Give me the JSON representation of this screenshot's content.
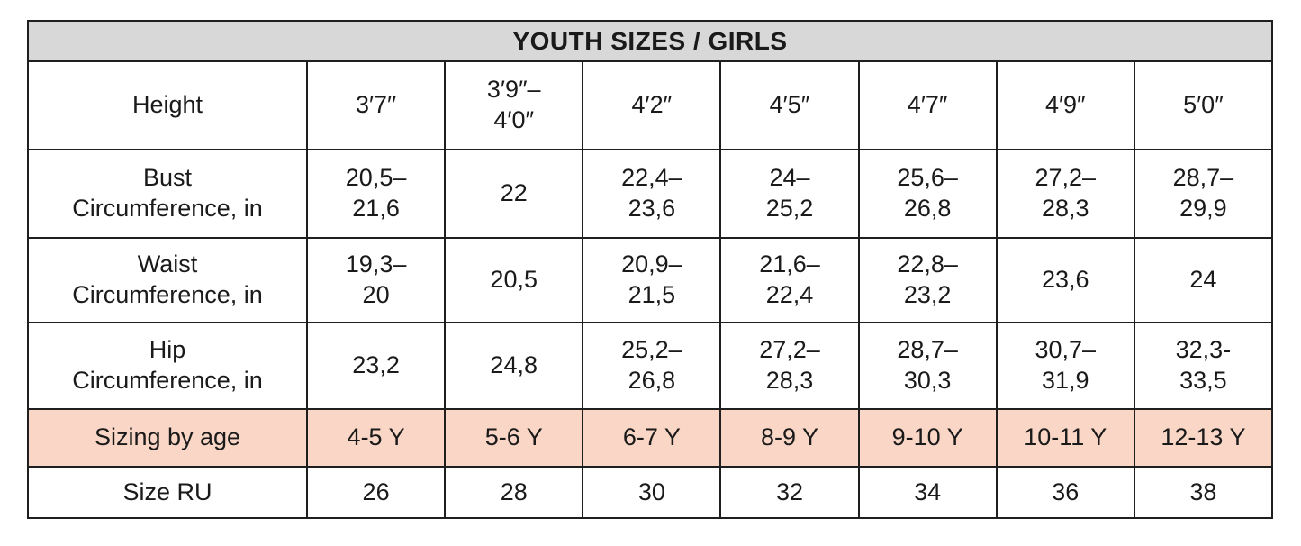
{
  "table": {
    "title": "YOUTH SIZES / GIRLS",
    "colors": {
      "title_bg": "#d8d8d8",
      "highlight_bg": "#f9d6c5",
      "border": "#1f1f1f",
      "text": "#1a1a1a"
    },
    "rows": [
      {
        "label": "Height",
        "values": [
          "3′7′′",
          "3′9″–\n4′0″",
          "4′2″",
          "4′5″",
          "4′7″",
          "4′9″",
          "5′0″"
        ]
      },
      {
        "label": "Bust\nCircumference, in",
        "values": [
          "20,5–\n21,6",
          "22",
          "22,4–\n23,6",
          "24–\n25,2",
          "25,6–\n26,8",
          "27,2–\n28,3",
          "28,7–\n29,9"
        ]
      },
      {
        "label": "Waist\nCircumference, in",
        "values": [
          "19,3–\n20",
          "20,5",
          "20,9–\n21,5",
          "21,6–\n22,4",
          "22,8–\n23,2",
          "23,6",
          "24"
        ]
      },
      {
        "label": "Hip\nCircumference, in",
        "values": [
          "23,2",
          "24,8",
          "25,2–\n26,8",
          "27,2–\n28,3",
          "28,7–\n30,3",
          "30,7–\n31,9",
          "32,3-\n33,5"
        ]
      },
      {
        "label": "Sizing by age",
        "values": [
          "4-5 Y",
          "5-6 Y",
          "6-7 Y",
          "8-9 Y",
          "9-10 Y",
          "10-11 Y",
          "12-13 Y"
        ]
      },
      {
        "label": "Size RU",
        "values": [
          "26",
          "28",
          "30",
          "32",
          "34",
          "36",
          "38"
        ]
      }
    ]
  }
}
